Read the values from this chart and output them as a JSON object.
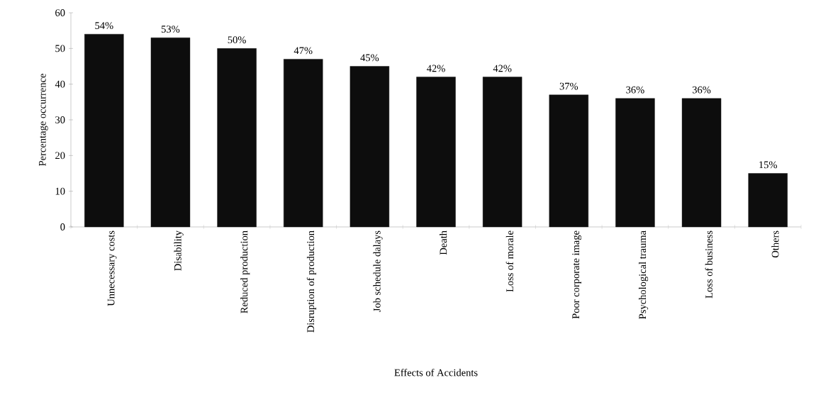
{
  "chart_data": {
    "type": "bar",
    "xlabel": "Effects of Accidents",
    "ylabel": "Percentage occurrence",
    "categories": [
      "Unnecessary costs",
      "Disability",
      "Reduced production",
      "Disruption of production",
      "Job schedule dalays",
      "Death",
      "Loss of morale",
      "Poor corporate image",
      "Psychological trauma",
      "Loss of business",
      "Others"
    ],
    "values": [
      54,
      53,
      50,
      47,
      45,
      42,
      42,
      37,
      36,
      36,
      15
    ],
    "value_labels": [
      "54%",
      "53%",
      "50%",
      "47%",
      "45%",
      "42%",
      "42%",
      "37%",
      "36%",
      "36%",
      "15%"
    ],
    "color": "#0d0d0d",
    "ylim": [
      0,
      60
    ],
    "yticks": [
      0,
      10,
      20,
      30,
      40,
      50,
      60
    ],
    "grid": false
  }
}
